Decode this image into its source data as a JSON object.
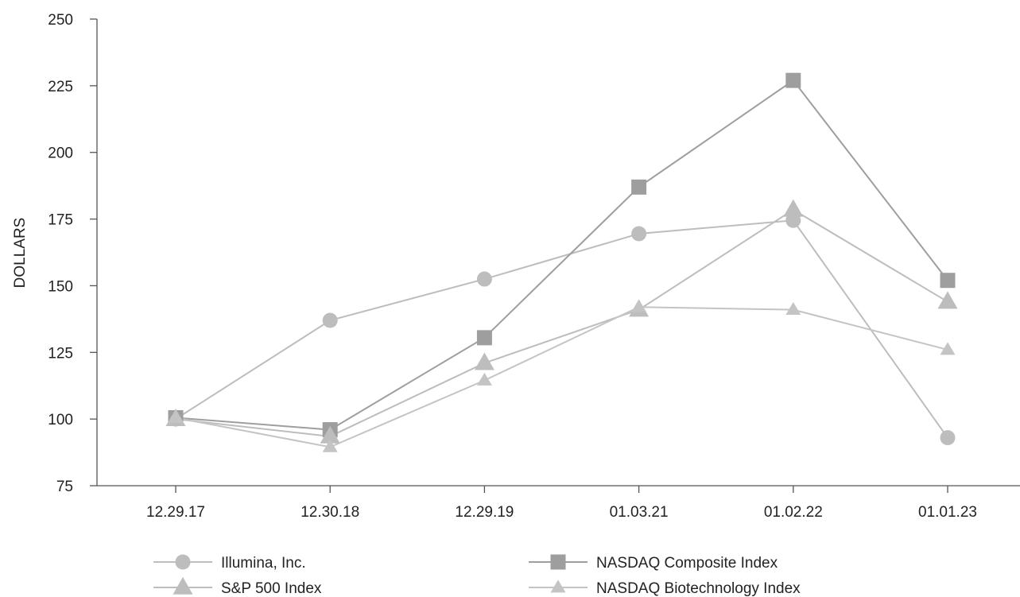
{
  "chart_data": {
    "type": "line",
    "title": "",
    "ylabel": "DOLLARS",
    "xlabel": "",
    "categories": [
      "12.29.17",
      "12.30.18",
      "12.29.19",
      "01.03.21",
      "01.02.22",
      "01.01.23"
    ],
    "ylim": [
      75,
      250
    ],
    "yticks": [
      75,
      100,
      125,
      150,
      175,
      200,
      225,
      250
    ],
    "grid": false,
    "legend_position": "bottom",
    "series": [
      {
        "name": "Illumina, Inc.",
        "marker": "circle",
        "color": "#bdbdbd",
        "values": [
          100,
          137,
          152.5,
          169.5,
          174.5,
          93
        ]
      },
      {
        "name": "NASDAQ Composite Index",
        "marker": "square",
        "color": "#9e9e9e",
        "values": [
          100.5,
          96,
          130.5,
          187,
          227,
          152
        ]
      },
      {
        "name": "S&P 500 Index",
        "marker": "triangle-large",
        "color": "#bdbdbd",
        "values": [
          100,
          93.5,
          121,
          141,
          178.5,
          144
        ]
      },
      {
        "name": "NASDAQ Biotechnology Index",
        "marker": "triangle-small",
        "color": "#c4c4c4",
        "values": [
          100.5,
          89.5,
          114.5,
          142,
          141,
          126
        ]
      }
    ]
  }
}
